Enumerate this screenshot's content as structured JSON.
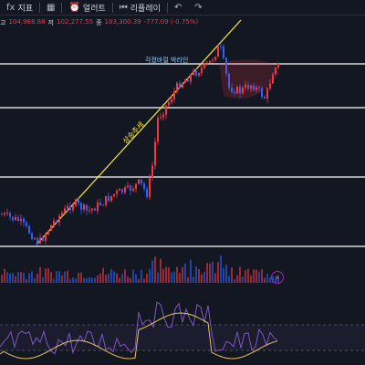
{
  "toolbar": {
    "items": [
      {
        "icon": "indicator-icon",
        "glyph": "fx",
        "label": "지표"
      },
      {
        "icon": "layout-grid-icon",
        "glyph": "▦",
        "label": ""
      },
      {
        "icon": "alert-clock-icon",
        "glyph": "⏰",
        "label": "얼러트"
      },
      {
        "icon": "replay-icon",
        "glyph": "⏮",
        "label": "리플레이"
      },
      {
        "icon": "undo-icon",
        "glyph": "↶",
        "label": ""
      },
      {
        "icon": "redo-icon",
        "glyph": "↷",
        "label": ""
      }
    ]
  },
  "ohlc": {
    "open_label": "고",
    "open_value": "104,988.88",
    "low_label": "저",
    "low_value": "102,277.55",
    "close_label": "종",
    "close_value": "103,300.39",
    "change": "-777.09 (-0.75%)"
  },
  "colors": {
    "background": "#131722",
    "up": "#f23645",
    "down": "#2962ff",
    "trendline": "#ffeb3b",
    "hline": "#ffffff",
    "oscillator_main": "#7e57c2",
    "oscillator_signal": "#e6c35c"
  },
  "chart_data": {
    "type": "candlestick",
    "title": "",
    "annotations": {
      "trendline_label": "상승추세",
      "hline_label": "각졌바럴 박라인"
    },
    "horizontal_levels": [
      "resistance-top",
      "support-1",
      "support-2",
      "support-3"
    ],
    "trend": "uptrend then consolidation",
    "volume_panel": true,
    "oscillator_panel": {
      "lines": [
        "main",
        "signal"
      ],
      "band": "dashed upper and lower levels"
    }
  }
}
